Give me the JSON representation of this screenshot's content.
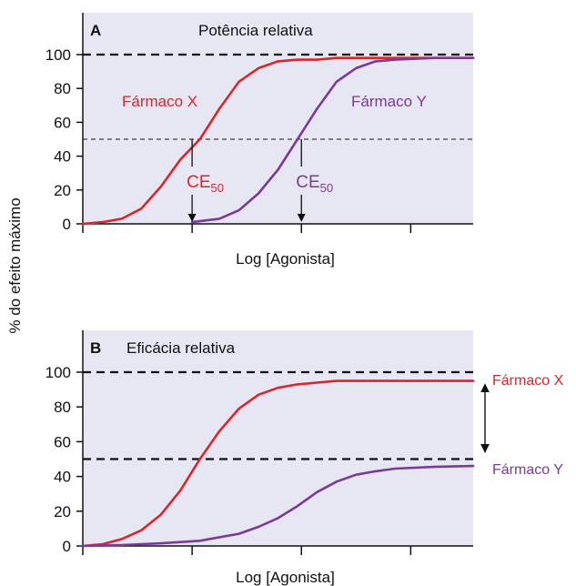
{
  "y_axis_label": "% do efeito máximo",
  "colors": {
    "drug_x": "#d7262e",
    "drug_y": "#7b3a95",
    "panel_bg": "#e6e7f2",
    "axis": "#111111"
  },
  "chart_data": [
    {
      "type": "line",
      "panel_letter": "A",
      "title": "Potência relativa",
      "xlabel": "Log [Agonista]",
      "ylabel": "% do efeito máximo",
      "ylim": [
        0,
        110
      ],
      "xlim": [
        0,
        10
      ],
      "yticks": [
        0,
        20,
        40,
        60,
        80,
        100
      ],
      "reference_lines": [
        100,
        50
      ],
      "series": [
        {
          "name": "Fármaco X",
          "color": "#d7262e",
          "x": [
            0,
            0.5,
            1,
            1.5,
            2,
            2.5,
            3,
            3.5,
            4,
            4.5,
            5,
            5.5,
            6,
            6.5,
            7,
            8,
            9,
            10
          ],
          "y": [
            0,
            1,
            3,
            9,
            22,
            38,
            50,
            68,
            84,
            92,
            96,
            97,
            97,
            98,
            98,
            98,
            98,
            98
          ]
        },
        {
          "name": "Fármaco Y",
          "color": "#7b3a95",
          "x": [
            2.8,
            3.5,
            4,
            4.5,
            5,
            5.5,
            6,
            6.5,
            7,
            7.5,
            8,
            9,
            10
          ],
          "y": [
            1,
            3,
            8,
            18,
            32,
            50,
            68,
            84,
            92,
            96,
            97,
            98,
            98
          ]
        }
      ],
      "annotations": [
        {
          "text": "CE",
          "subscript": "50",
          "series": "Fármaco X",
          "x": 2.8,
          "y": 50
        },
        {
          "text": "CE",
          "subscript": "50",
          "series": "Fármaco Y",
          "x": 5.6,
          "y": 50
        }
      ]
    },
    {
      "type": "line",
      "panel_letter": "B",
      "title": "Eficácia relativa",
      "xlabel": "Log [Agonista]",
      "ylabel": "% do efeito máximo",
      "ylim": [
        0,
        110
      ],
      "xlim": [
        0,
        10
      ],
      "yticks": [
        0,
        20,
        40,
        60,
        80,
        100
      ],
      "reference_lines": [
        100,
        50
      ],
      "series": [
        {
          "name": "Fármaco X",
          "color": "#d7262e",
          "x": [
            0,
            0.5,
            1,
            1.5,
            2,
            2.5,
            3,
            3.5,
            4,
            4.5,
            5,
            5.5,
            6,
            6.5,
            7,
            8,
            9,
            10
          ],
          "y": [
            0,
            1,
            4,
            9,
            18,
            32,
            50,
            66,
            79,
            87,
            91,
            93,
            94,
            95,
            95,
            95,
            95,
            95
          ]
        },
        {
          "name": "Fármaco Y",
          "color": "#7b3a95",
          "x": [
            0,
            1,
            2,
            3,
            4,
            4.5,
            5,
            5.5,
            6,
            6.5,
            7,
            7.5,
            8,
            9,
            10
          ],
          "y": [
            0,
            0.5,
            1.5,
            3,
            7,
            11,
            16,
            23,
            31,
            37,
            41,
            43,
            44.5,
            45.5,
            46
          ]
        }
      ],
      "side_labels": [
        "Fármaco X",
        "Fármaco Y"
      ]
    }
  ]
}
